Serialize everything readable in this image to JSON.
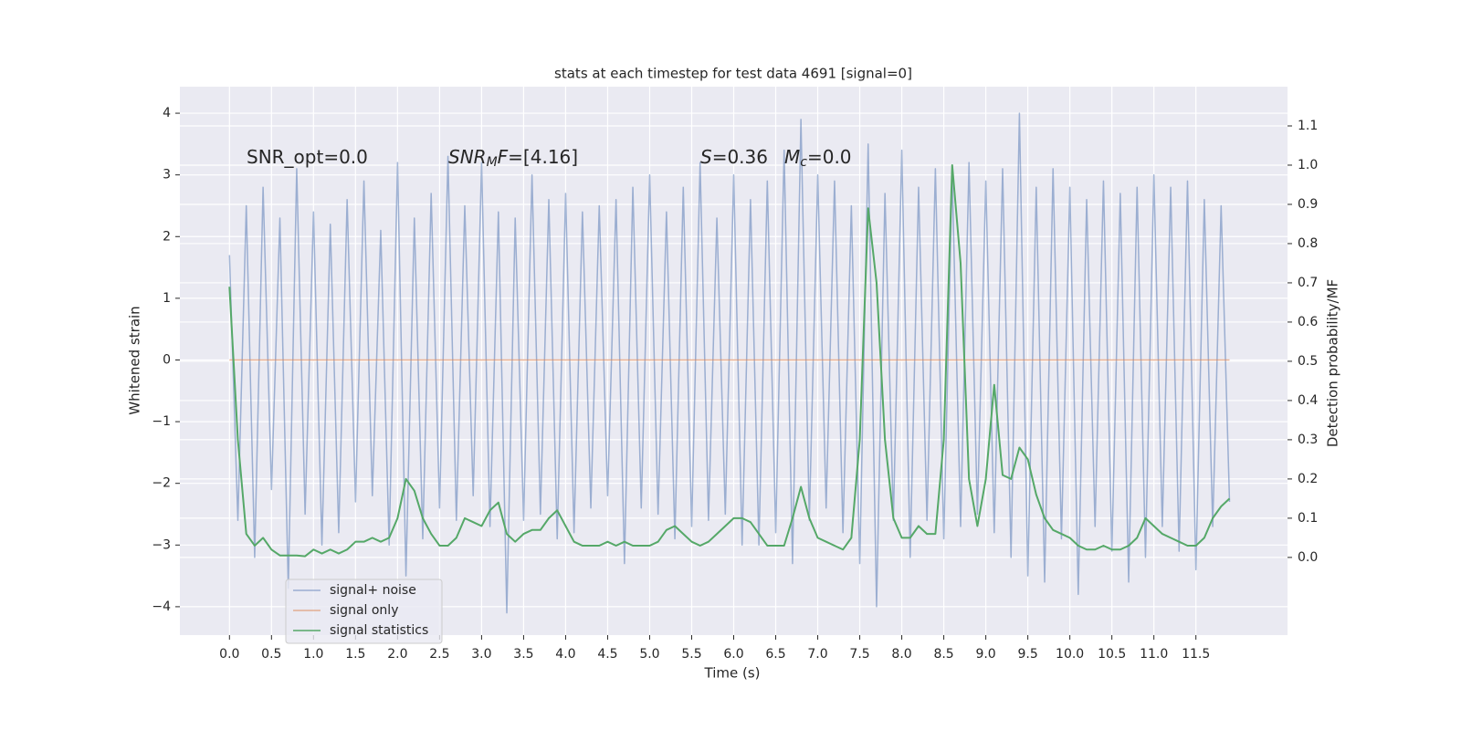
{
  "chart_data": {
    "type": "line",
    "title": "stats at each timestep for test data 4691 [signal=0]",
    "xlabel": "Time (s)",
    "ylabel": "Whitened strain",
    "y2label": "Detection probability/MF",
    "annotations": [
      {
        "parts": [
          {
            "text": "SNR_opt=0.0"
          }
        ]
      },
      {
        "parts": [
          {
            "text": "SNR",
            "italic": true
          },
          {
            "text": "M",
            "italic": true,
            "sub": true
          },
          {
            "text": "F",
            "italic": true
          },
          {
            "text": "=[4.16]"
          }
        ]
      },
      {
        "parts": [
          {
            "text": "S",
            "italic": true
          },
          {
            "text": "=0.36"
          }
        ]
      },
      {
        "parts": [
          {
            "text": "M",
            "italic": true
          },
          {
            "text": "c",
            "italic": true,
            "sub": true
          },
          {
            "text": "=0.0"
          }
        ]
      }
    ],
    "x": [
      0.0,
      0.1,
      0.2,
      0.3,
      0.4,
      0.5,
      0.6,
      0.7,
      0.8,
      0.9,
      1.0,
      1.1,
      1.2,
      1.3,
      1.4,
      1.5,
      1.6,
      1.7,
      1.8,
      1.9,
      2.0,
      2.1,
      2.2,
      2.3,
      2.4,
      2.5,
      2.6,
      2.7,
      2.8,
      2.9,
      3.0,
      3.1,
      3.2,
      3.3,
      3.4,
      3.5,
      3.6,
      3.7,
      3.8,
      3.9,
      4.0,
      4.1,
      4.2,
      4.3,
      4.4,
      4.5,
      4.6,
      4.7,
      4.8,
      4.9,
      5.0,
      5.1,
      5.2,
      5.3,
      5.4,
      5.5,
      5.6,
      5.7,
      5.8,
      5.9,
      6.0,
      6.1,
      6.2,
      6.3,
      6.4,
      6.5,
      6.6,
      6.7,
      6.8,
      6.9,
      7.0,
      7.1,
      7.2,
      7.3,
      7.4,
      7.5,
      7.6,
      7.7,
      7.8,
      7.9,
      8.0,
      8.1,
      8.2,
      8.3,
      8.4,
      8.5,
      8.6,
      8.7,
      8.8,
      8.9,
      9.0,
      9.1,
      9.2,
      9.3,
      9.4,
      9.5,
      9.6,
      9.7,
      9.8,
      9.9,
      10.0,
      10.1,
      10.2,
      10.3,
      10.4,
      10.5,
      10.6,
      10.7,
      10.8,
      10.9,
      11.0,
      11.1,
      11.2,
      11.3,
      11.4,
      11.5,
      11.6,
      11.7,
      11.8,
      11.9
    ],
    "series": [
      {
        "name": "signal+ noise",
        "color": "#4c72b0",
        "opacity": 0.5,
        "axis": "y",
        "values": [
          1.7,
          -2.6,
          2.5,
          -3.2,
          2.8,
          -2.1,
          2.3,
          -3.7,
          3.1,
          -2.5,
          2.4,
          -3.0,
          2.2,
          -2.8,
          2.6,
          -2.3,
          2.9,
          -2.2,
          2.1,
          -3.0,
          3.2,
          -3.5,
          2.3,
          -2.9,
          2.7,
          -2.4,
          3.3,
          -2.6,
          2.5,
          -2.2,
          3.2,
          -2.7,
          2.4,
          -4.1,
          2.3,
          -2.6,
          3.0,
          -2.5,
          2.6,
          -2.9,
          2.7,
          -2.8,
          2.4,
          -2.4,
          2.5,
          -2.2,
          2.6,
          -3.3,
          2.8,
          -2.4,
          3.0,
          -2.5,
          2.4,
          -2.9,
          2.8,
          -2.7,
          3.2,
          -2.6,
          2.3,
          -2.5,
          3.0,
          -3.0,
          2.6,
          -3.0,
          2.9,
          -2.8,
          3.4,
          -3.3,
          3.9,
          -2.6,
          3.0,
          -2.4,
          2.9,
          -2.8,
          2.5,
          -3.3,
          3.5,
          -4.0,
          2.7,
          -2.6,
          3.4,
          -3.2,
          2.8,
          -2.6,
          3.1,
          -2.9,
          3.0,
          -2.7,
          3.2,
          -2.5,
          2.9,
          -2.8,
          3.1,
          -3.2,
          4.0,
          -3.5,
          2.8,
          -3.6,
          3.1,
          -2.9,
          2.8,
          -3.8,
          2.6,
          -2.7,
          2.9,
          -3.1,
          2.7,
          -3.6,
          2.8,
          -3.2,
          3.0,
          -2.7,
          2.8,
          -3.1,
          2.9,
          -3.4,
          2.6,
          -2.7,
          2.5,
          -2.3
        ]
      },
      {
        "name": "signal only",
        "color": "#dd8452",
        "opacity": 0.6,
        "axis": "y",
        "values": [
          0,
          0,
          0,
          0,
          0,
          0,
          0,
          0,
          0,
          0,
          0,
          0,
          0,
          0,
          0,
          0,
          0,
          0,
          0,
          0,
          0,
          0,
          0,
          0,
          0,
          0,
          0,
          0,
          0,
          0,
          0,
          0,
          0,
          0,
          0,
          0,
          0,
          0,
          0,
          0,
          0,
          0,
          0,
          0,
          0,
          0,
          0,
          0,
          0,
          0,
          0,
          0,
          0,
          0,
          0,
          0,
          0,
          0,
          0,
          0,
          0,
          0,
          0,
          0,
          0,
          0,
          0,
          0,
          0,
          0,
          0,
          0,
          0,
          0,
          0,
          0,
          0,
          0,
          0,
          0,
          0,
          0,
          0,
          0,
          0,
          0,
          0,
          0,
          0,
          0,
          0,
          0,
          0,
          0,
          0,
          0,
          0,
          0,
          0,
          0,
          0,
          0,
          0,
          0,
          0,
          0,
          0,
          0,
          0,
          0,
          0,
          0,
          0,
          0,
          0,
          0,
          0,
          0,
          0,
          0
        ]
      },
      {
        "name": "signal statistics",
        "color": "#55a868",
        "opacity": 1,
        "axis": "y2",
        "values": [
          0.69,
          0.3,
          0.06,
          0.03,
          0.05,
          0.02,
          0.005,
          0.005,
          0.005,
          0.003,
          0.02,
          0.01,
          0.02,
          0.01,
          0.02,
          0.04,
          0.04,
          0.05,
          0.04,
          0.05,
          0.1,
          0.2,
          0.17,
          0.1,
          0.06,
          0.03,
          0.03,
          0.05,
          0.1,
          0.09,
          0.08,
          0.12,
          0.14,
          0.06,
          0.04,
          0.06,
          0.07,
          0.07,
          0.1,
          0.12,
          0.08,
          0.04,
          0.03,
          0.03,
          0.03,
          0.04,
          0.03,
          0.04,
          0.03,
          0.03,
          0.03,
          0.04,
          0.07,
          0.08,
          0.06,
          0.04,
          0.03,
          0.04,
          0.06,
          0.08,
          0.1,
          0.1,
          0.09,
          0.06,
          0.03,
          0.03,
          0.03,
          0.1,
          0.18,
          0.1,
          0.05,
          0.04,
          0.03,
          0.02,
          0.05,
          0.3,
          0.89,
          0.7,
          0.3,
          0.1,
          0.05,
          0.05,
          0.08,
          0.06,
          0.06,
          0.3,
          1.0,
          0.75,
          0.2,
          0.08,
          0.2,
          0.44,
          0.21,
          0.2,
          0.28,
          0.25,
          0.16,
          0.1,
          0.07,
          0.06,
          0.05,
          0.03,
          0.02,
          0.02,
          0.03,
          0.02,
          0.02,
          0.03,
          0.05,
          0.1,
          0.08,
          0.06,
          0.05,
          0.04,
          0.03,
          0.03,
          0.05,
          0.1,
          0.13,
          0.15
        ]
      }
    ],
    "xlim": [
      -0.59,
      12.59
    ],
    "xticks": [
      {
        "value": 0,
        "label": "0.0"
      },
      0.5,
      {
        "value": 1,
        "label": "1.0"
      },
      1.5,
      {
        "value": 2,
        "label": "2.0"
      },
      2.5,
      {
        "value": 3,
        "label": "3.0"
      },
      3.5,
      {
        "value": 4,
        "label": "4.0"
      },
      4.5,
      {
        "value": 5,
        "label": "5.0"
      },
      5.5,
      {
        "value": 6,
        "label": "6.0"
      },
      6.5,
      {
        "value": 7,
        "label": "7.0"
      },
      7.5,
      {
        "value": 8,
        "label": "8.0"
      },
      8.5,
      {
        "value": 9,
        "label": "9.0"
      },
      9.5,
      {
        "value": 10,
        "label": "10.0"
      },
      10.5,
      {
        "value": 11,
        "label": "11.0"
      },
      11.5
    ],
    "ylim": [
      -4.46,
      4.43
    ],
    "yticks": [
      {
        "value": -4,
        "label": "−4"
      },
      {
        "value": -3,
        "label": "−3"
      },
      {
        "value": -2,
        "label": "−2"
      },
      {
        "value": -1,
        "label": "−1"
      },
      0,
      1,
      2,
      3,
      4
    ],
    "y2lim": [
      -0.198,
      1.2
    ],
    "y2ticks": [
      {
        "value": 0,
        "label": "0.0"
      },
      0.1,
      0.2,
      0.3,
      0.4,
      0.5,
      0.6,
      0.7,
      0.8,
      0.9,
      {
        "value": 1,
        "label": "1.0"
      },
      1.1
    ],
    "grid": true,
    "legend": "lower left"
  }
}
